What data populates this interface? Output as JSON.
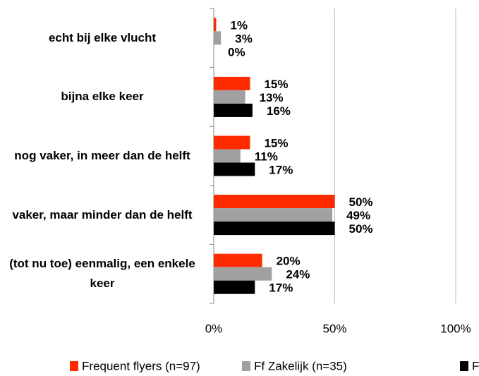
{
  "chart_data": {
    "type": "hbar",
    "categories": [
      "echt bij elke vlucht",
      "bijna elke keer",
      "nog vaker, in meer dan de helft",
      "vaker, maar minder dan de helft",
      "(tot nu toe) eenmalig, een enkele keer"
    ],
    "series": [
      {
        "name": "Frequent flyers (n=97)",
        "color": "#ff2a00",
        "values": [
          1,
          15,
          15,
          50,
          20
        ],
        "value_labels": [
          "1%",
          "15%",
          "15%",
          "50%",
          "20%"
        ]
      },
      {
        "name": "Ff Zakelijk (n=35)",
        "color": "#a0a0a0",
        "values": [
          3,
          13,
          11,
          49,
          24
        ],
        "value_labels": [
          "3%",
          "13%",
          "11%",
          "49%",
          "24%"
        ]
      },
      {
        "name": "F",
        "color": "#000000",
        "values": [
          0,
          16,
          17,
          50,
          17
        ],
        "value_labels": [
          "0%",
          "16%",
          "17%",
          "50%",
          "17%"
        ]
      }
    ],
    "xlim": [
      0,
      100
    ],
    "xticks": [
      {
        "value": 0,
        "label": "0%"
      },
      {
        "value": 50,
        "label": "50%"
      },
      {
        "value": 100,
        "label": "100%"
      }
    ],
    "grid": true,
    "legend": "bottom"
  }
}
